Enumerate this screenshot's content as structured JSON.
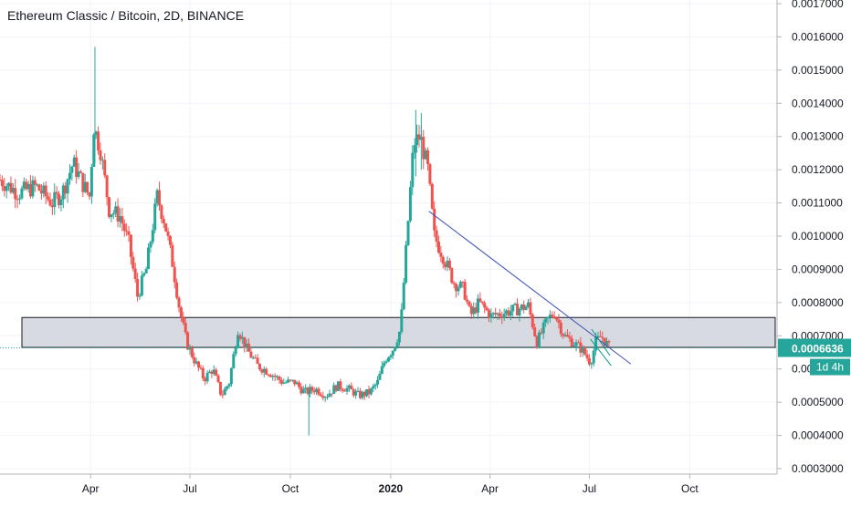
{
  "header": {
    "title": "Ethereum Classic / Bitcoin, 2D, BINANCE"
  },
  "colors": {
    "up": "#26a69a",
    "down": "#ef5350",
    "grid": "#f0f3fa",
    "axis_text": "#131722",
    "zone_fill": "#d1d4dc",
    "trendline": "#3f51b5",
    "pattern_line": "#089981",
    "price_badge": "#26a69a"
  },
  "chart_data": {
    "type": "candlestick",
    "title": "Ethereum Classic / Bitcoin, 2D, BINANCE",
    "ylim": [
      0.0003,
      0.0017
    ],
    "y_ticks": [
      "0.0017000",
      "0.0016000",
      "0.0015000",
      "0.0014000",
      "0.0013000",
      "0.0012000",
      "0.0011000",
      "0.0010000",
      "0.0009000",
      "0.0008000",
      "0.0007000",
      "0.0006000",
      "0.0005000",
      "0.0004000",
      "0.0003000"
    ],
    "y_tick_values": [
      0.0017,
      0.0016,
      0.0015,
      0.0014,
      0.0013,
      0.0012,
      0.0011,
      0.001,
      0.0009,
      0.0008,
      0.0007,
      0.0006,
      0.0005,
      0.0004,
      0.0003
    ],
    "x_ticks": [
      "Apr",
      "Jul",
      "Oct",
      "2020",
      "Apr",
      "Jul",
      "Oct"
    ],
    "x_tick_dates": [
      "2019-04-01",
      "2019-07-01",
      "2019-10-01",
      "2020-01-01",
      "2020-04-01",
      "2020-07-01",
      "2020-10-01"
    ],
    "x_range": [
      "2019-01-08",
      "2020-12-20"
    ],
    "current_price": "0.0006636",
    "current_price_value": 0.0006636,
    "countdown": "1d 4h",
    "zone": {
      "top": 0.000755,
      "bottom": 0.000665,
      "start": "2019-01-08"
    },
    "trendline": {
      "start": [
        "2020-02-05",
        0.001075
      ],
      "end": [
        "2020-08-08",
        0.000615
      ]
    },
    "triangle": {
      "upper": {
        "start": [
          "2020-07-03",
          0.00072
        ],
        "end": [
          "2020-07-20",
          0.00064
        ]
      },
      "lower": {
        "start": [
          "2020-07-02",
          0.00069
        ],
        "end": [
          "2020-07-21",
          0.00061
        ]
      }
    },
    "anchors": [
      [
        "2019-01-08",
        0.00117
      ],
      [
        "2019-01-25",
        0.00113
      ],
      [
        "2019-02-10",
        0.00115
      ],
      [
        "2019-02-25",
        0.0011
      ],
      [
        "2019-03-06",
        0.00113
      ],
      [
        "2019-03-16",
        0.00122
      ],
      [
        "2019-03-26",
        0.00115
      ],
      [
        "2019-03-31",
        0.00112
      ],
      [
        "2019-04-04",
        0.00133
      ],
      [
        "2019-04-10",
        0.00126
      ],
      [
        "2019-04-18",
        0.00108
      ],
      [
        "2019-04-28",
        0.00106
      ],
      [
        "2019-05-06",
        0.00098
      ],
      [
        "2019-05-14",
        0.00082
      ],
      [
        "2019-05-22",
        0.0009
      ],
      [
        "2019-06-01",
        0.00112
      ],
      [
        "2019-06-08",
        0.00104
      ],
      [
        "2019-06-15",
        0.00092
      ],
      [
        "2019-06-22",
        0.00077
      ],
      [
        "2019-06-28",
        0.00068
      ],
      [
        "2019-07-06",
        0.00062
      ],
      [
        "2019-07-14",
        0.00057
      ],
      [
        "2019-07-22",
        0.0006
      ],
      [
        "2019-07-30",
        0.00052
      ],
      [
        "2019-08-06",
        0.00056
      ],
      [
        "2019-08-14",
        0.00072
      ],
      [
        "2019-08-22",
        0.00066
      ],
      [
        "2019-09-01",
        0.00061
      ],
      [
        "2019-09-12",
        0.00059
      ],
      [
        "2019-09-24",
        0.00056
      ],
      [
        "2019-10-05",
        0.00056
      ],
      [
        "2019-10-14",
        0.00053
      ],
      [
        "2019-10-24",
        0.00054
      ],
      [
        "2019-11-03",
        0.00052
      ],
      [
        "2019-11-13",
        0.00055
      ],
      [
        "2019-11-23",
        0.00054
      ],
      [
        "2019-12-03",
        0.00052
      ],
      [
        "2019-12-13",
        0.00053
      ],
      [
        "2019-12-20",
        0.00056
      ],
      [
        "2019-12-27",
        0.00063
      ],
      [
        "2020-01-03",
        0.00066
      ],
      [
        "2020-01-10",
        0.00072
      ],
      [
        "2020-01-16",
        0.001
      ],
      [
        "2020-01-22",
        0.00128
      ],
      [
        "2020-01-28",
        0.0013
      ],
      [
        "2020-02-04",
        0.0012
      ],
      [
        "2020-02-10",
        0.001
      ],
      [
        "2020-02-18",
        0.00094
      ],
      [
        "2020-02-28",
        0.00086
      ],
      [
        "2020-03-08",
        0.00084
      ],
      [
        "2020-03-14",
        0.00076
      ],
      [
        "2020-03-22",
        0.0008
      ],
      [
        "2020-04-02",
        0.00076
      ],
      [
        "2020-04-14",
        0.00077
      ],
      [
        "2020-04-26",
        0.00078
      ],
      [
        "2020-05-06",
        0.00079
      ],
      [
        "2020-05-14",
        0.00068
      ],
      [
        "2020-05-24",
        0.00075
      ],
      [
        "2020-05-30",
        0.00077
      ],
      [
        "2020-06-08",
        0.0007
      ],
      [
        "2020-06-16",
        0.00068
      ],
      [
        "2020-06-24",
        0.00066
      ],
      [
        "2020-07-02",
        0.00062
      ],
      [
        "2020-07-07",
        0.00068
      ],
      [
        "2020-07-12",
        0.0007
      ],
      [
        "2020-07-20",
        0.00066
      ]
    ]
  }
}
